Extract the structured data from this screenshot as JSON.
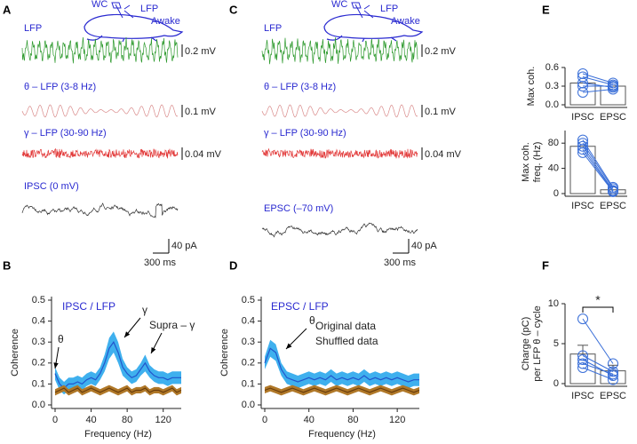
{
  "letters": [
    "A",
    "B",
    "C",
    "D",
    "E",
    "F"
  ],
  "traces": [
    {
      "cartoon": [
        "WC",
        "LFP",
        "Awake"
      ],
      "rows": [
        {
          "label": "LFP",
          "scale": "0.2 mV",
          "color": "#2e9a2e"
        },
        {
          "label": "θ – LFP (3-8 Hz)",
          "scale": "0.1 mV",
          "color": "#d98a8a"
        },
        {
          "label": "γ – LFP (30-90 Hz)",
          "scale": "0.04 mV",
          "color": "#e23a3a"
        },
        {
          "label": "IPSC (0 mV)",
          "scale": "40 pA",
          "color": "#333333"
        }
      ],
      "time_scale": "300 ms"
    },
    {
      "cartoon": [
        "WC",
        "LFP",
        "Awake"
      ],
      "rows": [
        {
          "label": "LFP",
          "scale": "0.2 mV",
          "color": "#2e9a2e"
        },
        {
          "label": "θ – LFP (3-8 Hz)",
          "scale": "0.1 mV",
          "color": "#d98a8a"
        },
        {
          "label": "γ – LFP (30-90 Hz)",
          "scale": "0.04 mV",
          "color": "#e23a3a"
        },
        {
          "label": "EPSC (–70 mV)",
          "scale": "40 pA",
          "color": "#333333"
        }
      ],
      "time_scale": "300 ms"
    }
  ],
  "chart_data": [
    {
      "type": "line",
      "xlabel": "Frequency (Hz)",
      "ylabel": "Coherence",
      "xlim": [
        0,
        140
      ],
      "xticks": [
        0,
        40,
        80,
        120
      ],
      "ylim": [
        0,
        0.5
      ],
      "yticks": [
        {
          "value": 0,
          "label": "0.0"
        },
        0.1,
        0.2,
        0.3,
        0.4,
        0.5
      ],
      "annotations": [
        "IPSC / LFP",
        "θ",
        "γ",
        "Supra – γ"
      ],
      "x": [
        0,
        5,
        10,
        15,
        20,
        25,
        30,
        35,
        40,
        45,
        50,
        55,
        60,
        65,
        70,
        75,
        80,
        85,
        90,
        95,
        100,
        105,
        110,
        115,
        120,
        125,
        130,
        135,
        140
      ],
      "series": [
        {
          "color": "#2255cc",
          "band_color": "#3fb0ee",
          "values": [
            0.15,
            0.1,
            0.08,
            0.1,
            0.1,
            0.11,
            0.1,
            0.12,
            0.13,
            0.12,
            0.15,
            0.2,
            0.27,
            0.3,
            0.25,
            0.18,
            0.15,
            0.13,
            0.14,
            0.17,
            0.2,
            0.16,
            0.14,
            0.13,
            0.13,
            0.12,
            0.13,
            0.13,
            0.13
          ],
          "error": [
            0.03,
            0.03,
            0.03,
            0.03,
            0.03,
            0.03,
            0.03,
            0.03,
            0.03,
            0.03,
            0.03,
            0.04,
            0.05,
            0.05,
            0.05,
            0.04,
            0.03,
            0.03,
            0.03,
            0.03,
            0.04,
            0.03,
            0.03,
            0.03,
            0.03,
            0.03,
            0.03,
            0.03,
            0.03
          ]
        },
        {
          "color": "#6b3e0c",
          "band_color": "#b07828",
          "values": [
            0.06,
            0.07,
            0.08,
            0.06,
            0.07,
            0.08,
            0.06,
            0.07,
            0.08,
            0.07,
            0.06,
            0.07,
            0.08,
            0.07,
            0.06,
            0.07,
            0.08,
            0.06,
            0.07,
            0.07,
            0.08,
            0.06,
            0.07,
            0.07,
            0.06,
            0.07,
            0.08,
            0.06,
            0.07
          ],
          "error": [
            0.015,
            0.015,
            0.015,
            0.015,
            0.015,
            0.015,
            0.015,
            0.015,
            0.015,
            0.015,
            0.015,
            0.015,
            0.015,
            0.015,
            0.015,
            0.015,
            0.015,
            0.015,
            0.015,
            0.015,
            0.015,
            0.015,
            0.015,
            0.015,
            0.015,
            0.015,
            0.015,
            0.015,
            0.015
          ]
        }
      ]
    },
    {
      "type": "line",
      "xlabel": "Frequency (Hz)",
      "ylabel": "Coherence",
      "xlim": [
        0,
        140
      ],
      "xticks": [
        0,
        40,
        80,
        120
      ],
      "ylim": [
        0,
        0.5
      ],
      "yticks": [
        {
          "value": 0,
          "label": "0.0"
        },
        0.1,
        0.2,
        0.3,
        0.4,
        0.5
      ],
      "annotations": [
        "EPSC / LFP",
        "θ"
      ],
      "x": [
        0,
        5,
        10,
        15,
        20,
        25,
        30,
        35,
        40,
        45,
        50,
        55,
        60,
        65,
        70,
        75,
        80,
        85,
        90,
        95,
        100,
        105,
        110,
        115,
        120,
        125,
        130,
        135,
        140
      ],
      "series": [
        {
          "name": "Original data",
          "color": "#2255cc",
          "band_color": "#3fb0ee",
          "values": [
            0.2,
            0.27,
            0.25,
            0.17,
            0.13,
            0.12,
            0.11,
            0.12,
            0.13,
            0.12,
            0.13,
            0.12,
            0.14,
            0.12,
            0.13,
            0.12,
            0.13,
            0.12,
            0.14,
            0.12,
            0.13,
            0.12,
            0.13,
            0.12,
            0.13,
            0.12,
            0.11,
            0.12,
            0.12
          ],
          "error": [
            0.03,
            0.04,
            0.04,
            0.03,
            0.03,
            0.03,
            0.03,
            0.03,
            0.03,
            0.03,
            0.03,
            0.03,
            0.03,
            0.03,
            0.03,
            0.03,
            0.03,
            0.03,
            0.03,
            0.03,
            0.03,
            0.03,
            0.03,
            0.03,
            0.03,
            0.03,
            0.03,
            0.03,
            0.03
          ]
        },
        {
          "name": "Shuffled data",
          "color": "#6b3e0c",
          "band_color": "#b07828",
          "values": [
            0.07,
            0.08,
            0.07,
            0.06,
            0.07,
            0.08,
            0.07,
            0.06,
            0.07,
            0.08,
            0.07,
            0.06,
            0.07,
            0.08,
            0.07,
            0.06,
            0.07,
            0.08,
            0.07,
            0.06,
            0.07,
            0.08,
            0.07,
            0.06,
            0.07,
            0.08,
            0.07,
            0.06,
            0.07
          ],
          "error": [
            0.015,
            0.015,
            0.015,
            0.015,
            0.015,
            0.015,
            0.015,
            0.015,
            0.015,
            0.015,
            0.015,
            0.015,
            0.015,
            0.015,
            0.015,
            0.015,
            0.015,
            0.015,
            0.015,
            0.015,
            0.015,
            0.015,
            0.015,
            0.015,
            0.015,
            0.015,
            0.015,
            0.015,
            0.015
          ]
        }
      ]
    },
    {
      "type": "bar",
      "ylabel": [
        "Max coh."
      ],
      "categories": [
        "IPSC",
        "EPSC"
      ],
      "ylim": [
        0,
        0.6
      ],
      "yticks": [
        {
          "value": 0,
          "label": "0.0"
        },
        0.3,
        0.6
      ],
      "values": [
        0.35,
        0.3
      ],
      "point_color": "#3a6fd8",
      "points": [
        [
          0.5,
          0.35
        ],
        [
          0.45,
          0.32
        ],
        [
          0.35,
          0.28
        ],
        [
          0.3,
          0.3
        ],
        [
          0.2,
          0.25
        ]
      ]
    },
    {
      "type": "bar",
      "ylabel": [
        "Max coh.",
        "freq. (Hz)"
      ],
      "categories": [
        "IPSC",
        "EPSC"
      ],
      "ylim": [
        0,
        100
      ],
      "yticks": [
        0,
        40,
        80
      ],
      "values": [
        75,
        6
      ],
      "point_color": "#3a6fd8",
      "points": [
        [
          85,
          10
        ],
        [
          80,
          8
        ],
        [
          75,
          5
        ],
        [
          70,
          4
        ],
        [
          65,
          3
        ]
      ]
    },
    {
      "type": "bar",
      "ylabel": [
        "Charge (pC)",
        "per LFP θ – cycle"
      ],
      "categories": [
        "IPSC",
        "EPSC"
      ],
      "ylim": [
        0,
        10
      ],
      "yticks": [
        0,
        5,
        10
      ],
      "values": [
        3.7,
        1.6
      ],
      "errors": [
        1.1,
        0.7
      ],
      "significance": "*",
      "point_color": "#3a6fd8",
      "points": [
        [
          8.1,
          2.5
        ],
        [
          3.5,
          1.5
        ],
        [
          3.0,
          1.0
        ],
        [
          2.5,
          1.2
        ],
        [
          2.0,
          0.5
        ]
      ]
    }
  ]
}
